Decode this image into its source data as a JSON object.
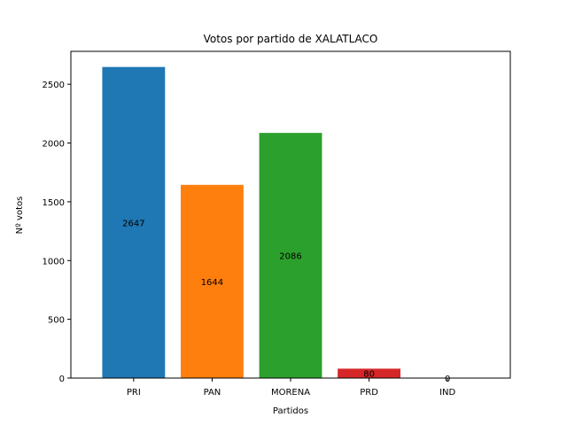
{
  "chart_data": {
    "type": "bar",
    "title": "Votos por partido de XALATLACO",
    "xlabel": "Partidos",
    "ylabel": "Nº votos",
    "categories": [
      "PRI",
      "PAN",
      "MORENA",
      "PRD",
      "IND"
    ],
    "values": [
      2647,
      1644,
      2086,
      80,
      0
    ],
    "data_labels": [
      "2647",
      "1644",
      "2086",
      "80",
      "0"
    ],
    "colors": [
      "#1f77b4",
      "#ff7f0e",
      "#2ca02c",
      "#d62728",
      "#9467bd"
    ],
    "ylim": [
      0,
      2780
    ],
    "yticks": [
      0,
      500,
      1000,
      1500,
      2000,
      2500
    ],
    "ytick_labels": [
      "0",
      "500",
      "1000",
      "1500",
      "2000",
      "2500"
    ],
    "grid": false,
    "legend": "none"
  }
}
